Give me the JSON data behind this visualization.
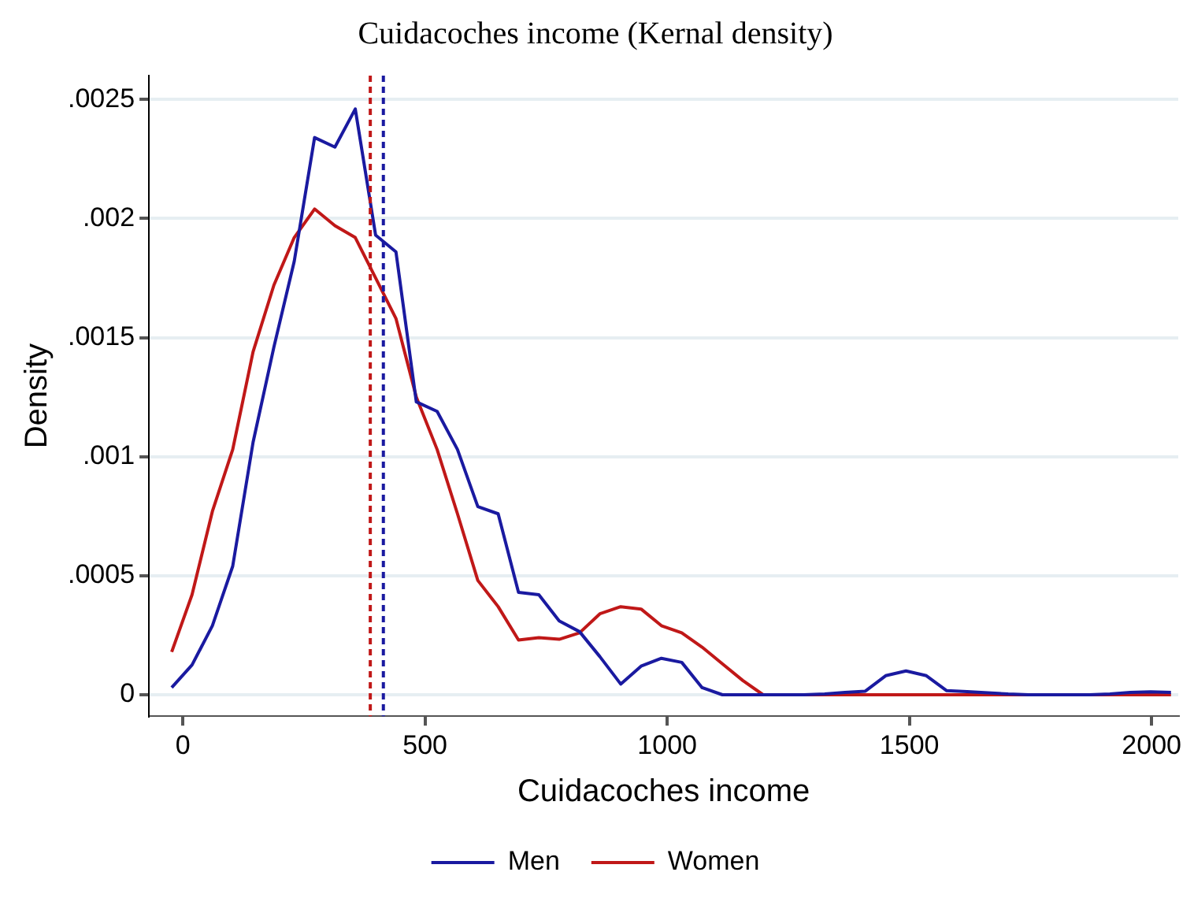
{
  "chart_data": {
    "type": "line",
    "title": "Cuidacoches income (Kernal density)",
    "xlabel": "Cuidacoches income",
    "ylabel": "Density",
    "x": [
      -23,
      19,
      61,
      103,
      145,
      188,
      230,
      272,
      314,
      356,
      398,
      440,
      482,
      525,
      567,
      609,
      651,
      693,
      735,
      777,
      819,
      861,
      904,
      946,
      988,
      1030,
      1072,
      1114,
      1156,
      1198,
      1240,
      1282,
      1325,
      1367,
      1409,
      1451,
      1493,
      1535,
      1577,
      1619,
      1662,
      1704,
      1746,
      1788,
      1830,
      1872,
      1914,
      1956,
      1998,
      2040
    ],
    "series": [
      {
        "name": "Men",
        "color": "#1a1aa0",
        "values": [
          3e-05,
          0.000125,
          0.00029,
          0.00054,
          0.00106,
          0.00146,
          0.00182,
          0.00234,
          0.0023,
          0.00246,
          0.00193,
          0.00186,
          0.00123,
          0.00119,
          0.00103,
          0.00079,
          0.00076,
          0.00043,
          0.00042,
          0.00031,
          0.000265,
          0.00016,
          4.5e-05,
          0.00012,
          0.000153,
          0.000136,
          3e-05,
          0,
          0,
          0,
          0,
          0,
          3e-06,
          1e-05,
          1.5e-05,
          8e-05,
          0.0001,
          8e-05,
          1.7e-05,
          1.3e-05,
          8e-06,
          3e-06,
          0,
          0,
          0,
          0,
          3e-06,
          1e-05,
          1.2e-05,
          1e-05
        ]
      },
      {
        "name": "Women",
        "color": "#c01818",
        "values": [
          0.00018,
          0.00042,
          0.00077,
          0.00103,
          0.00144,
          0.00172,
          0.00192,
          0.00204,
          0.00197,
          0.00192,
          0.00175,
          0.00158,
          0.00125,
          0.00103,
          0.00076,
          0.00048,
          0.00037,
          0.00023,
          0.00024,
          0.000233,
          0.00026,
          0.00034,
          0.00037,
          0.00036,
          0.00029,
          0.00026,
          0.0002,
          0.00013,
          6e-05,
          0,
          0,
          0,
          0,
          0,
          0,
          0,
          0,
          0,
          0,
          0,
          0,
          0,
          0,
          0,
          0,
          0,
          0,
          0,
          0,
          0
        ]
      }
    ],
    "ref_lines": [
      {
        "axis": "x",
        "value": 387,
        "color": "#c01818",
        "line_style": "dashed"
      },
      {
        "axis": "x",
        "value": 414,
        "color": "#1a1aa0",
        "line_style": "dashed"
      }
    ],
    "xlim": [
      -70,
      2055
    ],
    "xticks": [
      0,
      500,
      1000,
      1500,
      2000
    ],
    "ylim": [
      -9e-05,
      0.0026
    ],
    "yticks": [
      {
        "value": 0,
        "label": "0"
      },
      {
        "value": 0.0005,
        "label": ".0005"
      },
      {
        "value": 0.001,
        "label": ".001"
      },
      {
        "value": 0.0015,
        "label": ".0015"
      },
      {
        "value": 0.002,
        "label": ".002"
      },
      {
        "value": 0.0025,
        "label": ".0025"
      }
    ],
    "grid": "y",
    "legend": "bottom",
    "marker": "none",
    "line_style": "solid"
  }
}
